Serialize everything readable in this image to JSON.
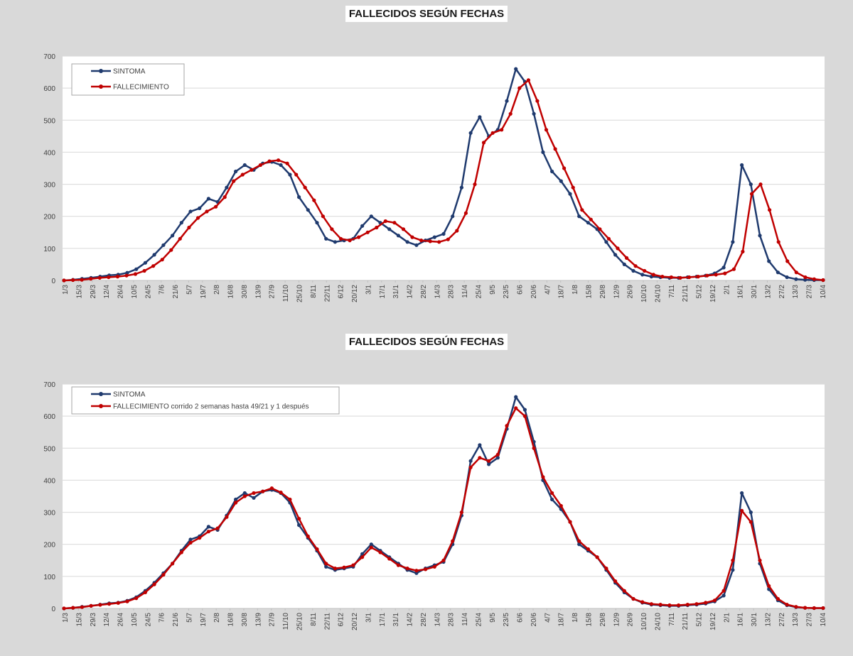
{
  "colors": {
    "sintoma": "#1f3a6e",
    "fallecimiento": "#c00000",
    "plot_background": "#ffffff",
    "gridline": "#d9d9d9"
  },
  "chart_data": [
    {
      "type": "line",
      "title": "FALLECIDOS SEGÚN FECHAS",
      "xlabel": "",
      "ylabel": "",
      "ylim": [
        0,
        700
      ],
      "y_ticks": [
        "0",
        "100",
        "200",
        "300",
        "400",
        "500",
        "600",
        "700"
      ],
      "x_tick_labels": [
        "1/3",
        "15/3",
        "29/3",
        "12/4",
        "26/4",
        "10/5",
        "24/5",
        "7/6",
        "21/6",
        "5/7",
        "19/7",
        "2/8",
        "16/8",
        "30/8",
        "13/9",
        "27/9",
        "11/10",
        "25/10",
        "8/11",
        "22/11",
        "6/12",
        "20/12",
        "3/1",
        "17/1",
        "31/1",
        "14/2",
        "28/2",
        "14/3",
        "28/3",
        "11/4",
        "25/4",
        "9/5",
        "23/5",
        "6/6",
        "20/6",
        "4/7",
        "18/7",
        "1/8",
        "15/8",
        "29/8",
        "12/9",
        "26/9",
        "10/10",
        "24/10",
        "7/11",
        "21/11",
        "5/12",
        "19/12",
        "2/1",
        "16/1",
        "30/1",
        "13/2",
        "27/2",
        "13/3",
        "27/3",
        "10/4"
      ],
      "grid": "horizontal",
      "legend": "top-left",
      "series": [
        {
          "name": "SINTOMA",
          "color": "#1f3a6e",
          "values": [
            0,
            2,
            5,
            8,
            12,
            16,
            18,
            24,
            35,
            55,
            80,
            110,
            140,
            180,
            215,
            225,
            255,
            245,
            290,
            340,
            360,
            345,
            365,
            370,
            360,
            330,
            260,
            220,
            180,
            130,
            120,
            125,
            130,
            170,
            200,
            180,
            160,
            140,
            120,
            110,
            125,
            135,
            145,
            200,
            290,
            460,
            510,
            450,
            470,
            560,
            660,
            620,
            520,
            400,
            340,
            310,
            270,
            200,
            180,
            160,
            120,
            80,
            50,
            30,
            18,
            12,
            10,
            8,
            8,
            10,
            12,
            15,
            22,
            40,
            120,
            360,
            300,
            140,
            60,
            25,
            10,
            4,
            2,
            1,
            1
          ]
        },
        {
          "name": "FALLECIMIENTO",
          "color": "#c00000",
          "values": [
            0,
            1,
            2,
            5,
            8,
            10,
            12,
            15,
            20,
            30,
            45,
            65,
            95,
            130,
            165,
            195,
            215,
            230,
            260,
            310,
            330,
            345,
            360,
            372,
            375,
            365,
            330,
            290,
            250,
            200,
            160,
            130,
            125,
            135,
            150,
            165,
            185,
            180,
            160,
            135,
            125,
            122,
            120,
            128,
            155,
            210,
            300,
            430,
            460,
            470,
            520,
            600,
            625,
            560,
            470,
            410,
            350,
            290,
            220,
            190,
            160,
            130,
            100,
            70,
            45,
            30,
            18,
            12,
            10,
            8,
            10,
            12,
            15,
            18,
            22,
            35,
            90,
            270,
            300,
            220,
            120,
            60,
            25,
            10,
            4,
            1
          ]
        }
      ]
    },
    {
      "type": "line",
      "title": "FALLECIDOS SEGÚN FECHAS",
      "xlabel": "",
      "ylabel": "",
      "ylim": [
        0,
        700
      ],
      "y_ticks": [
        "0",
        "100",
        "200",
        "300",
        "400",
        "500",
        "600",
        "700"
      ],
      "x_tick_labels": [
        "1/3",
        "15/3",
        "29/3",
        "12/4",
        "26/4",
        "10/5",
        "24/5",
        "7/6",
        "21/6",
        "5/7",
        "19/7",
        "2/8",
        "16/8",
        "30/8",
        "13/9",
        "27/9",
        "11/10",
        "25/10",
        "8/11",
        "22/11",
        "6/12",
        "20/12",
        "3/1",
        "17/1",
        "31/1",
        "14/2",
        "28/2",
        "14/3",
        "28/3",
        "11/4",
        "25/4",
        "9/5",
        "23/5",
        "6/6",
        "20/6",
        "4/7",
        "18/7",
        "1/8",
        "15/8",
        "29/8",
        "12/9",
        "26/9",
        "10/10",
        "24/10",
        "7/11",
        "21/11",
        "5/12",
        "19/12",
        "2/1",
        "16/1",
        "30/1",
        "13/2",
        "27/2",
        "13/3",
        "27/3",
        "10/4"
      ],
      "grid": "horizontal",
      "legend": "top-left",
      "series": [
        {
          "name": "SINTOMA",
          "color": "#1f3a6e",
          "values": [
            0,
            2,
            5,
            8,
            12,
            16,
            18,
            24,
            35,
            55,
            80,
            110,
            140,
            180,
            215,
            225,
            255,
            245,
            290,
            340,
            360,
            345,
            365,
            370,
            360,
            330,
            260,
            220,
            180,
            130,
            120,
            125,
            130,
            170,
            200,
            180,
            160,
            140,
            120,
            110,
            125,
            135,
            145,
            200,
            290,
            460,
            510,
            450,
            470,
            560,
            660,
            620,
            520,
            400,
            340,
            310,
            270,
            200,
            180,
            160,
            120,
            80,
            50,
            30,
            18,
            12,
            10,
            8,
            8,
            10,
            12,
            15,
            22,
            40,
            120,
            360,
            300,
            140,
            60,
            25,
            10,
            4,
            2,
            1,
            1
          ]
        },
        {
          "name": "FALLECIMIENTO corrido 2 semanas hasta 49/21 y 1 después",
          "color": "#c00000",
          "values": [
            0,
            2,
            4,
            8,
            11,
            14,
            17,
            22,
            32,
            50,
            75,
            105,
            140,
            175,
            205,
            220,
            240,
            250,
            285,
            330,
            350,
            360,
            365,
            375,
            362,
            340,
            280,
            225,
            185,
            140,
            125,
            128,
            135,
            160,
            190,
            175,
            155,
            135,
            125,
            118,
            122,
            130,
            150,
            210,
            300,
            440,
            470,
            460,
            480,
            570,
            625,
            600,
            500,
            410,
            360,
            320,
            270,
            210,
            185,
            160,
            125,
            85,
            55,
            30,
            20,
            14,
            12,
            10,
            10,
            12,
            14,
            18,
            25,
            55,
            150,
            305,
            270,
            150,
            70,
            30,
            12,
            5,
            2,
            1,
            1
          ]
        }
      ]
    }
  ]
}
